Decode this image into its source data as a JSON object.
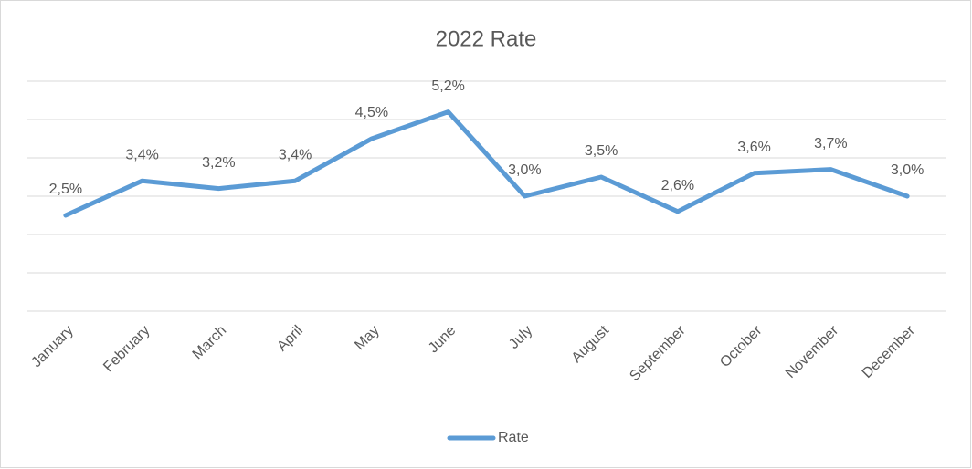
{
  "chart_data": {
    "type": "line",
    "title": "2022 Rate",
    "categories": [
      "January",
      "February",
      "March",
      "April",
      "May",
      "June",
      "July",
      "August",
      "September",
      "October",
      "November",
      "December"
    ],
    "series": [
      {
        "name": "Rate",
        "color": "#5b9bd5",
        "values": [
          2.5,
          3.4,
          3.2,
          3.4,
          4.5,
          5.2,
          3.0,
          3.5,
          2.6,
          3.6,
          3.7,
          3.0
        ],
        "value_labels": [
          "2,5%",
          "3,4%",
          "3,2%",
          "3,4%",
          "4,5%",
          "5,2%",
          "3,0%",
          "3,5%",
          "2,6%",
          "3,6%",
          "3,7%",
          "3,0%"
        ]
      }
    ],
    "ylim": [
      0,
      6
    ],
    "yticks": [
      0,
      1,
      2,
      3,
      4,
      5,
      6
    ],
    "grid": true,
    "legend": "bottom"
  }
}
